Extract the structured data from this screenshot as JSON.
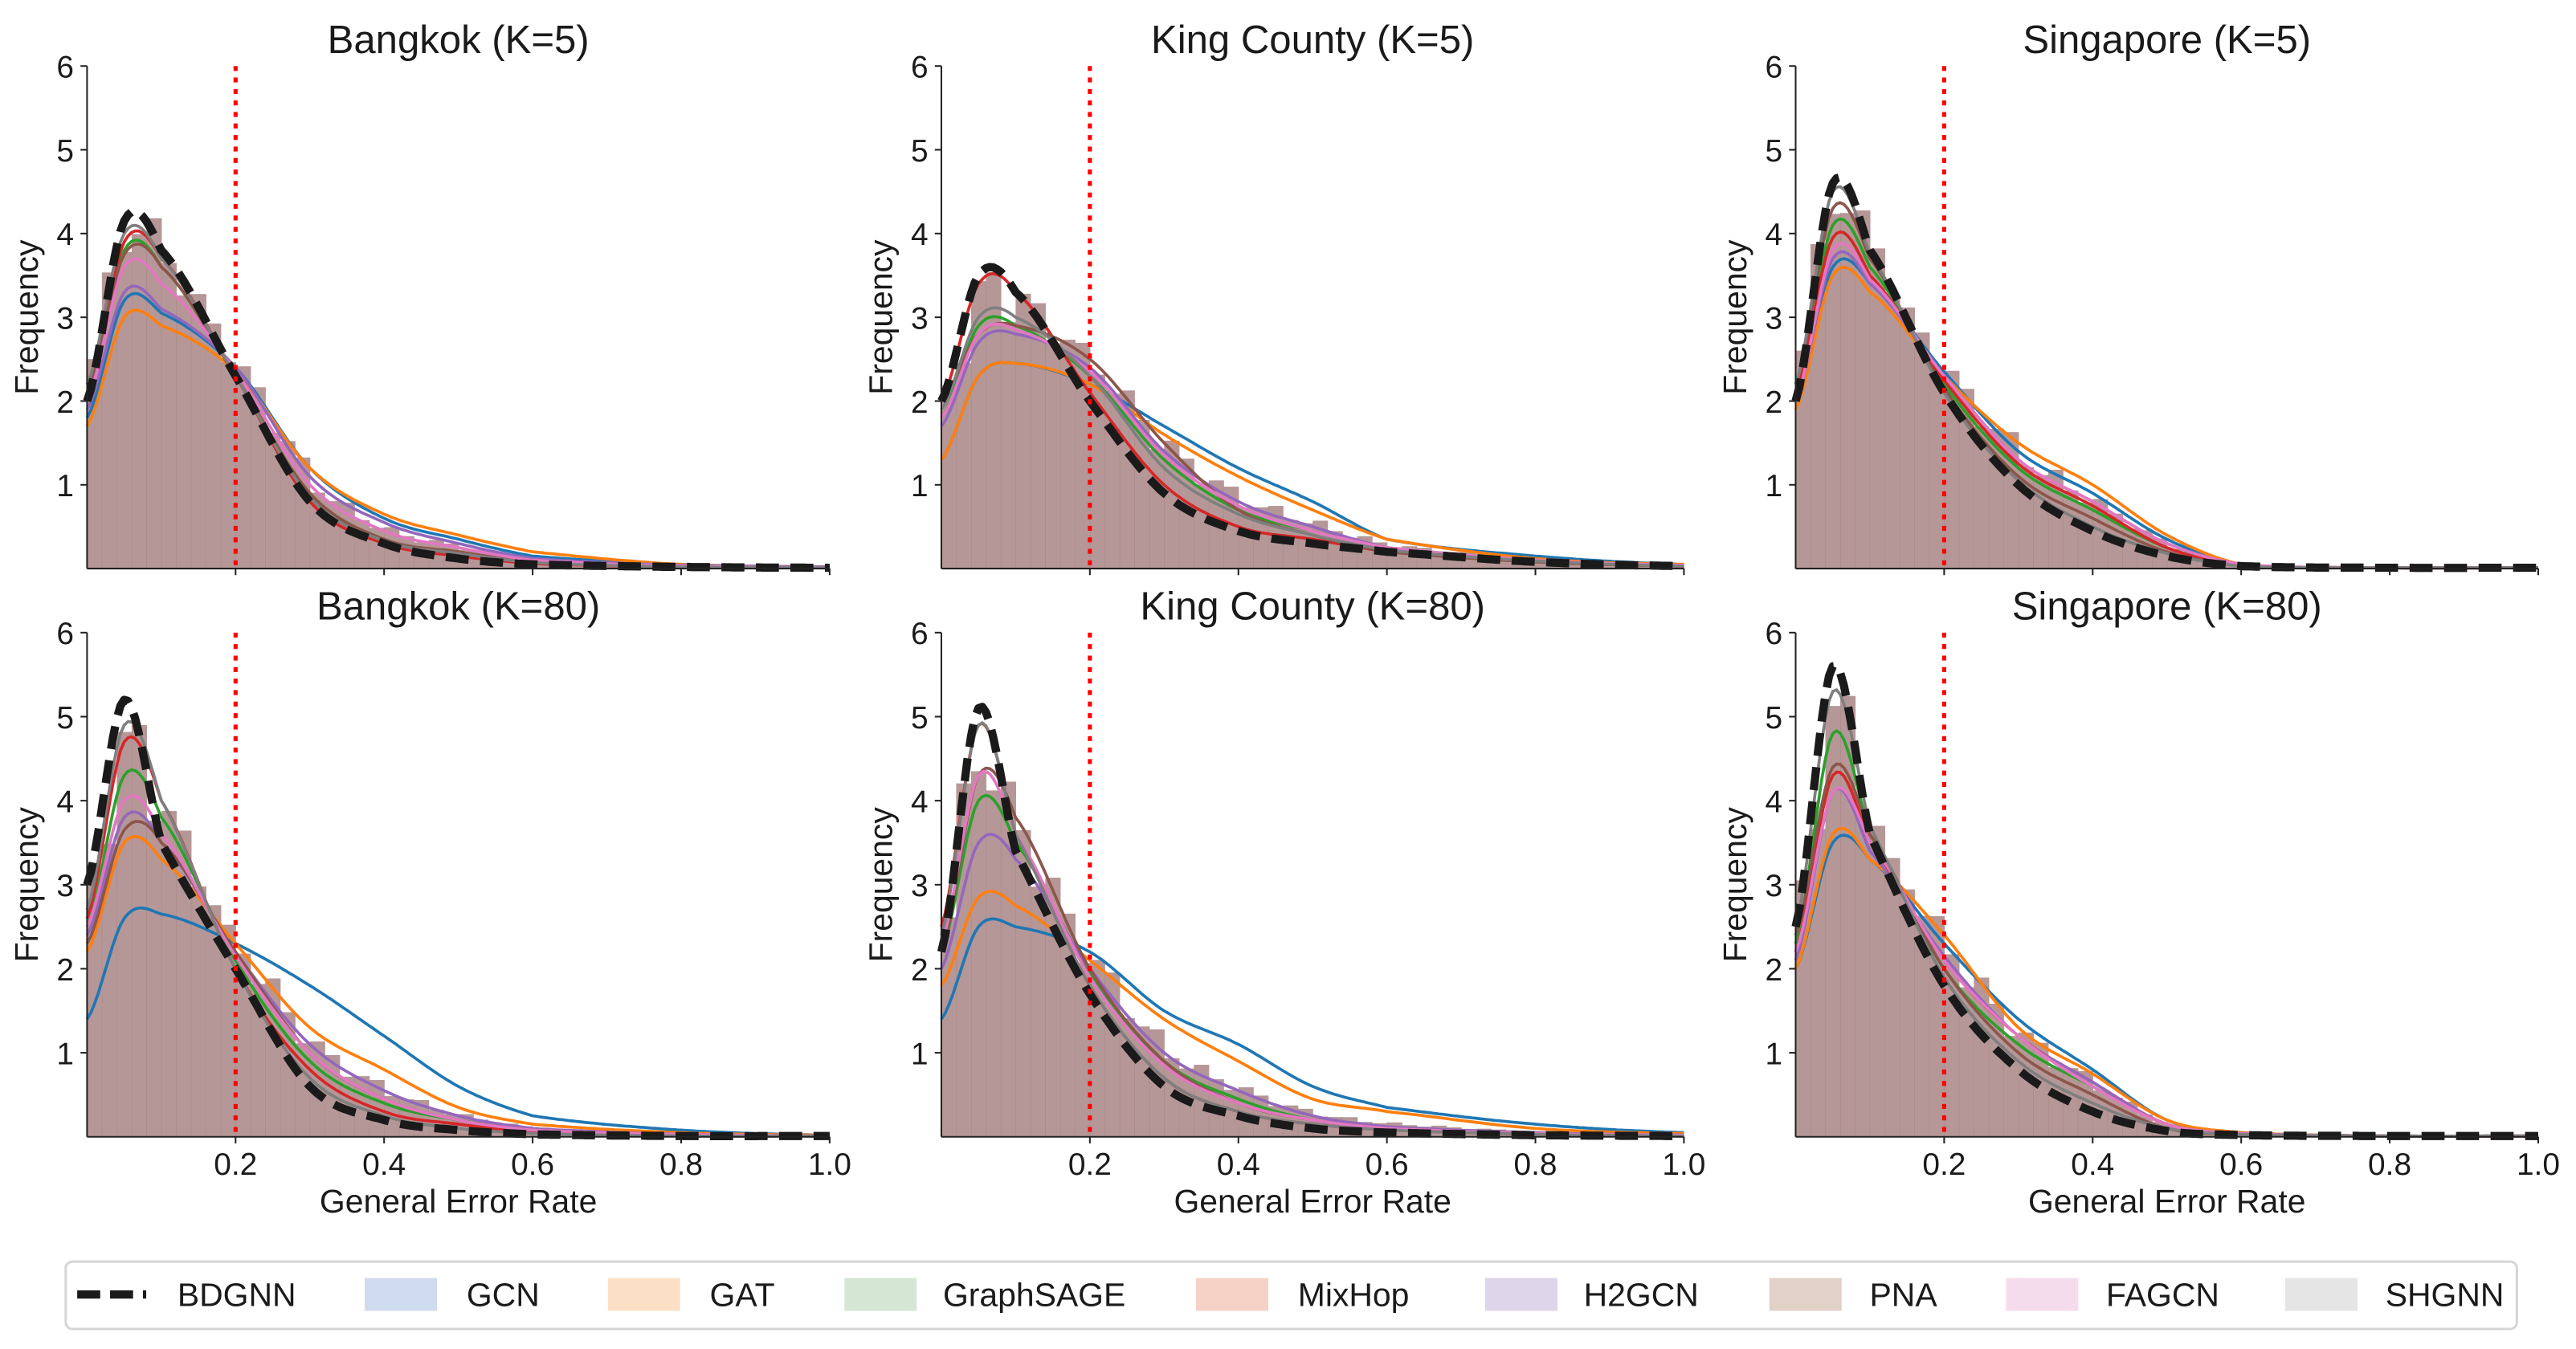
{
  "chart_data": {
    "type": "area",
    "grid": false,
    "legend_placement": "bottom",
    "x_grid": [
      0,
      0.05,
      0.1,
      0.2,
      0.3,
      0.4,
      0.5,
      0.6,
      0.8,
      1.0
    ],
    "threshold_line": {
      "x": 0.2,
      "color": "#ff0000",
      "style": "dotted"
    },
    "legend": [
      {
        "name": "BDGNN",
        "color": "#1a1a1a",
        "patch": "dashed-line"
      },
      {
        "name": "GCN",
        "color": "#1f77b4",
        "patch_color": "#cfdbee"
      },
      {
        "name": "GAT",
        "color": "#ff7f0e",
        "patch_color": "#fce0c6"
      },
      {
        "name": "GraphSAGE",
        "color": "#2ca02c",
        "patch_color": "#d5e7d4"
      },
      {
        "name": "MixHop",
        "color": "#d62728",
        "patch_color": "#f6d1c6"
      },
      {
        "name": "H2GCN",
        "color": "#9467bd",
        "patch_color": "#ddd5ea"
      },
      {
        "name": "PNA",
        "color": "#8c564b",
        "patch_color": "#e2d1c7"
      },
      {
        "name": "FAGCN",
        "color": "#e377c2",
        "patch_color": "#f5dcec"
      },
      {
        "name": "SHGNN",
        "color": "#7f7f7f",
        "patch_color": "#e5e5e5"
      }
    ],
    "panels": [
      {
        "title": "Bangkok (K=5)",
        "xlabel": "",
        "ylabel": "Frequency",
        "xlim": [
          0,
          1.0
        ],
        "ylim": [
          0,
          6
        ],
        "yticks": [
          "1",
          "2",
          "3",
          "4",
          "5",
          "6"
        ],
        "xticks": [],
        "series": {
          "BDGNN": [
            2.0,
            4.15,
            3.8,
            2.3,
            0.8,
            0.3,
            0.12,
            0.05,
            0.02,
            0.01
          ],
          "GCN": [
            1.8,
            3.2,
            3.05,
            2.4,
            1.2,
            0.6,
            0.35,
            0.15,
            0.05,
            0.02
          ],
          "GAT": [
            1.7,
            3.0,
            2.9,
            2.35,
            1.2,
            0.65,
            0.4,
            0.2,
            0.05,
            0.02
          ],
          "GraphSAGE": [
            2.0,
            3.8,
            3.6,
            2.3,
            0.9,
            0.35,
            0.2,
            0.08,
            0.03,
            0.01
          ],
          "MixHop": [
            2.0,
            3.9,
            3.7,
            2.3,
            0.8,
            0.3,
            0.15,
            0.06,
            0.02,
            0.01
          ],
          "H2GCN": [
            1.9,
            3.3,
            3.1,
            2.4,
            1.1,
            0.55,
            0.3,
            0.12,
            0.04,
            0.02
          ],
          "PNA": [
            2.1,
            3.75,
            3.6,
            2.3,
            0.9,
            0.35,
            0.2,
            0.08,
            0.03,
            0.01
          ],
          "FAGCN": [
            2.0,
            3.6,
            3.4,
            2.35,
            1.0,
            0.45,
            0.25,
            0.1,
            0.03,
            0.01
          ],
          "SHGNN": [
            2.2,
            4.0,
            3.7,
            2.3,
            0.85,
            0.33,
            0.18,
            0.07,
            0.02,
            0.01
          ]
        }
      },
      {
        "title": "King County (K=5)",
        "xlabel": "",
        "ylabel": "Frequency",
        "xlim": [
          0,
          1.0
        ],
        "ylim": [
          0,
          6
        ],
        "yticks": [
          "1",
          "2",
          "3",
          "4",
          "5",
          "6"
        ],
        "xticks": [],
        "series": {
          "BDGNN": [
            2.0,
            3.5,
            3.3,
            2.0,
            0.9,
            0.45,
            0.3,
            0.2,
            0.08,
            0.03
          ],
          "GCN": [
            1.3,
            2.3,
            2.45,
            2.2,
            1.7,
            1.2,
            0.8,
            0.35,
            0.15,
            0.05
          ],
          "GAT": [
            1.3,
            2.3,
            2.45,
            2.2,
            1.6,
            1.1,
            0.7,
            0.35,
            0.12,
            0.05
          ],
          "GraphSAGE": [
            1.8,
            2.9,
            2.9,
            2.3,
            1.3,
            0.7,
            0.45,
            0.25,
            0.1,
            0.04
          ],
          "MixHop": [
            2.0,
            3.4,
            3.3,
            2.1,
            1.0,
            0.5,
            0.35,
            0.2,
            0.08,
            0.03
          ],
          "H2GCN": [
            1.7,
            2.7,
            2.8,
            2.4,
            1.4,
            0.8,
            0.5,
            0.25,
            0.1,
            0.04
          ],
          "PNA": [
            2.0,
            2.8,
            2.9,
            2.5,
            1.5,
            0.7,
            0.4,
            0.2,
            0.08,
            0.03
          ],
          "FAGCN": [
            1.8,
            2.8,
            2.85,
            2.35,
            1.35,
            0.75,
            0.45,
            0.25,
            0.1,
            0.04
          ],
          "SHGNN": [
            1.9,
            3.0,
            3.0,
            2.3,
            1.2,
            0.65,
            0.4,
            0.22,
            0.09,
            0.03
          ]
        }
      },
      {
        "title": "Singapore (K=5)",
        "xlabel": "",
        "ylabel": "Frequency",
        "xlim": [
          0,
          1.0
        ],
        "ylim": [
          0,
          6
        ],
        "yticks": [
          "1",
          "2",
          "3",
          "4",
          "5",
          "6"
        ],
        "xticks": [],
        "series": {
          "BDGNN": [
            2.0,
            4.6,
            3.8,
            2.1,
            1.0,
            0.45,
            0.15,
            0.03,
            0.01,
            0.01
          ],
          "GCN": [
            2.0,
            3.6,
            3.4,
            2.35,
            1.4,
            0.9,
            0.35,
            0.05,
            0.01,
            0.01
          ],
          "GAT": [
            1.9,
            3.5,
            3.3,
            2.3,
            1.5,
            1.0,
            0.4,
            0.05,
            0.01,
            0.01
          ],
          "GraphSAGE": [
            2.1,
            4.1,
            3.6,
            2.2,
            1.2,
            0.7,
            0.25,
            0.04,
            0.01,
            0.01
          ],
          "MixHop": [
            2.1,
            3.95,
            3.5,
            2.25,
            1.25,
            0.75,
            0.25,
            0.04,
            0.01,
            0.01
          ],
          "H2GCN": [
            2.0,
            3.7,
            3.4,
            2.3,
            1.3,
            0.8,
            0.3,
            0.05,
            0.01,
            0.01
          ],
          "PNA": [
            2.2,
            4.3,
            3.7,
            2.15,
            1.1,
            0.6,
            0.2,
            0.04,
            0.01,
            0.01
          ],
          "FAGCN": [
            2.0,
            3.8,
            3.45,
            2.3,
            1.3,
            0.8,
            0.3,
            0.05,
            0.01,
            0.01
          ],
          "SHGNN": [
            2.2,
            4.5,
            3.75,
            2.1,
            1.05,
            0.5,
            0.18,
            0.03,
            0.01,
            0.01
          ]
        }
      },
      {
        "title": "Bangkok (K=80)",
        "xlabel": "General Error Rate",
        "ylabel": "Frequency",
        "xlim": [
          0,
          1.0
        ],
        "ylim": [
          0,
          6
        ],
        "yticks": [
          "1",
          "2",
          "3",
          "4",
          "5",
          "6"
        ],
        "xticks": [
          "0.2",
          "0.4",
          "0.6",
          "0.8",
          "1.0"
        ],
        "series": {
          "BDGNN": [
            3.0,
            5.2,
            3.5,
            2.0,
            0.6,
            0.2,
            0.08,
            0.03,
            0.01,
            0.01
          ],
          "GCN": [
            1.4,
            2.6,
            2.65,
            2.3,
            1.8,
            1.2,
            0.6,
            0.25,
            0.08,
            0.02
          ],
          "GAT": [
            2.2,
            3.5,
            3.3,
            2.3,
            1.3,
            0.8,
            0.35,
            0.15,
            0.05,
            0.02
          ],
          "GraphSAGE": [
            2.5,
            4.3,
            3.8,
            2.1,
            0.9,
            0.4,
            0.2,
            0.08,
            0.03,
            0.01
          ],
          "MixHop": [
            2.6,
            4.7,
            4.0,
            2.0,
            0.8,
            0.3,
            0.15,
            0.06,
            0.02,
            0.01
          ],
          "H2GCN": [
            2.4,
            3.8,
            3.5,
            2.2,
            1.1,
            0.55,
            0.25,
            0.1,
            0.03,
            0.01
          ],
          "PNA": [
            2.3,
            3.65,
            3.5,
            2.2,
            1.0,
            0.45,
            0.2,
            0.08,
            0.03,
            0.01
          ],
          "FAGCN": [
            2.5,
            4.0,
            3.6,
            2.15,
            1.0,
            0.45,
            0.2,
            0.08,
            0.03,
            0.01
          ],
          "SHGNN": [
            2.7,
            4.9,
            4.0,
            2.0,
            0.7,
            0.25,
            0.1,
            0.04,
            0.01,
            0.01
          ]
        }
      },
      {
        "title": "King County (K=80)",
        "xlabel": "General Error Rate",
        "ylabel": "Frequency",
        "xlim": [
          0,
          1.0
        ],
        "ylim": [
          0,
          6
        ],
        "yticks": [
          "1",
          "2",
          "3",
          "4",
          "5",
          "6"
        ],
        "xticks": [
          "0.2",
          "0.4",
          "0.6",
          "0.8",
          "1.0"
        ],
        "series": {
          "BDGNN": [
            2.2,
            5.1,
            3.4,
            1.7,
            0.6,
            0.25,
            0.1,
            0.05,
            0.02,
            0.01
          ],
          "GCN": [
            1.4,
            2.5,
            2.5,
            2.2,
            1.5,
            1.1,
            0.6,
            0.35,
            0.15,
            0.05
          ],
          "GAT": [
            1.8,
            2.85,
            2.75,
            2.1,
            1.4,
            0.9,
            0.45,
            0.3,
            0.1,
            0.04
          ],
          "GraphSAGE": [
            2.2,
            4.0,
            3.5,
            1.95,
            0.9,
            0.45,
            0.2,
            0.1,
            0.04,
            0.02
          ],
          "MixHop": [
            2.5,
            4.9,
            3.6,
            1.8,
            0.7,
            0.3,
            0.15,
            0.08,
            0.03,
            0.01
          ],
          "H2GCN": [
            2.0,
            3.5,
            3.3,
            2.0,
            1.0,
            0.55,
            0.25,
            0.12,
            0.05,
            0.02
          ],
          "PNA": [
            2.2,
            4.3,
            3.8,
            2.0,
            0.9,
            0.4,
            0.2,
            0.1,
            0.04,
            0.02
          ],
          "FAGCN": [
            2.3,
            4.3,
            3.6,
            1.9,
            0.85,
            0.4,
            0.2,
            0.1,
            0.04,
            0.02
          ],
          "SHGNN": [
            2.4,
            4.9,
            3.6,
            1.8,
            0.7,
            0.3,
            0.15,
            0.08,
            0.03,
            0.01
          ]
        }
      },
      {
        "title": "Singapore (K=80)",
        "xlabel": "General Error Rate",
        "ylabel": "Frequency",
        "xlim": [
          0,
          1.0
        ],
        "ylim": [
          0,
          6
        ],
        "yticks": [
          "1",
          "2",
          "3",
          "4",
          "5",
          "6"
        ],
        "xticks": [
          "0.2",
          "0.4",
          "0.6",
          "0.8",
          "1.0"
        ],
        "series": {
          "BDGNN": [
            2.5,
            5.6,
            3.6,
            1.8,
            0.8,
            0.3,
            0.07,
            0.02,
            0.01,
            0.01
          ],
          "GCN": [
            2.0,
            3.5,
            3.3,
            2.3,
            1.4,
            0.8,
            0.2,
            0.05,
            0.01,
            0.01
          ],
          "GAT": [
            2.0,
            3.6,
            3.3,
            2.4,
            1.3,
            0.75,
            0.2,
            0.05,
            0.01,
            0.01
          ],
          "GraphSAGE": [
            2.3,
            4.8,
            3.6,
            2.0,
            1.1,
            0.6,
            0.15,
            0.04,
            0.01,
            0.01
          ],
          "MixHop": [
            2.2,
            4.3,
            3.5,
            2.1,
            1.2,
            0.65,
            0.15,
            0.04,
            0.01,
            0.01
          ],
          "H2GCN": [
            2.1,
            4.1,
            3.4,
            2.15,
            1.2,
            0.65,
            0.15,
            0.04,
            0.01,
            0.01
          ],
          "PNA": [
            2.4,
            4.4,
            3.6,
            2.0,
            1.0,
            0.5,
            0.1,
            0.03,
            0.01,
            0.01
          ],
          "FAGCN": [
            2.2,
            4.1,
            3.5,
            2.1,
            1.2,
            0.6,
            0.15,
            0.04,
            0.01,
            0.01
          ],
          "SHGNN": [
            2.5,
            5.3,
            3.7,
            1.9,
            0.9,
            0.4,
            0.1,
            0.03,
            0.01,
            0.01
          ]
        }
      }
    ]
  }
}
